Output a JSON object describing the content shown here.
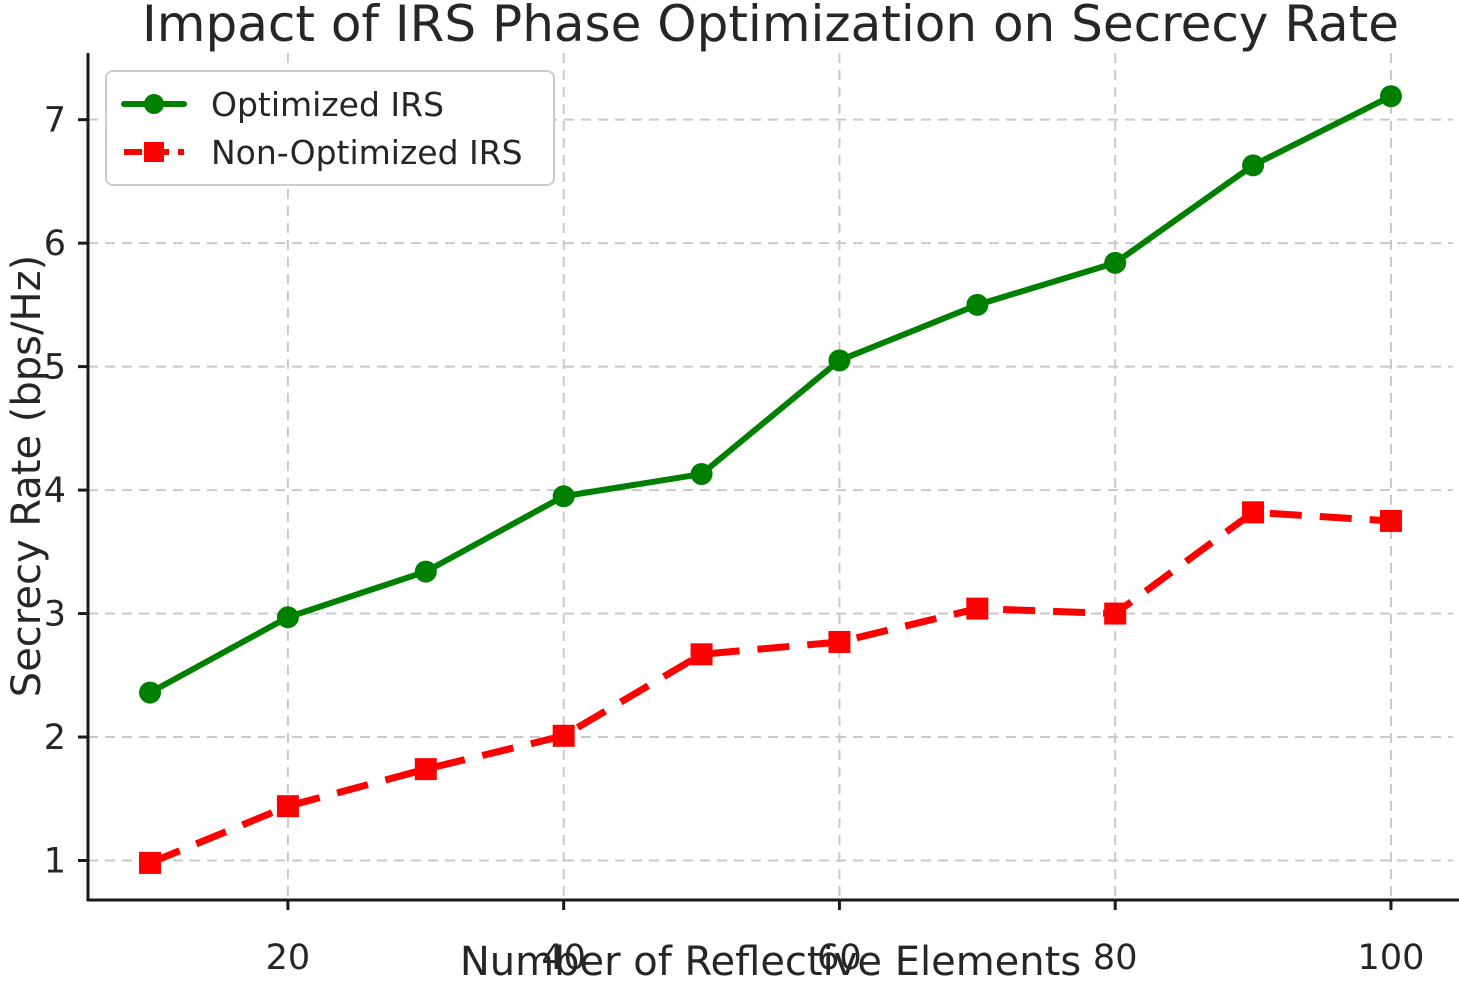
{
  "chart_data": {
    "type": "line",
    "title": "Impact of IRS Phase Optimization on Secrecy Rate",
    "xlabel": "Number of Reflective Elements",
    "ylabel": "Secrecy Rate (bps/Hz)",
    "x": [
      10,
      20,
      30,
      40,
      50,
      60,
      70,
      80,
      90,
      100
    ],
    "series": [
      {
        "name": "Optimized IRS",
        "color": "#008000",
        "linestyle": "solid",
        "marker": "circle",
        "values": [
          2.36,
          2.97,
          3.34,
          3.95,
          4.13,
          5.05,
          5.5,
          5.84,
          6.63,
          7.19
        ]
      },
      {
        "name": "Non-Optimized IRS",
        "color": "#ff0000",
        "linestyle": "dashed",
        "marker": "square",
        "values": [
          0.98,
          1.44,
          1.74,
          2.01,
          2.67,
          2.77,
          3.04,
          3.0,
          3.82,
          3.75
        ]
      }
    ],
    "xticks": [
      20,
      40,
      60,
      80,
      100
    ],
    "yticks": [
      1,
      2,
      3,
      4,
      5,
      6,
      7
    ],
    "xlim": [
      5.5,
      104.5
    ],
    "ylim": [
      0.68,
      7.54
    ],
    "grid": true,
    "grid_style": "dashed",
    "legend_position": "upper left",
    "colors": {
      "grid": "#c9c9c9",
      "spine": "#1a1a1a",
      "text": "#262626",
      "background": "#ffffff"
    }
  }
}
